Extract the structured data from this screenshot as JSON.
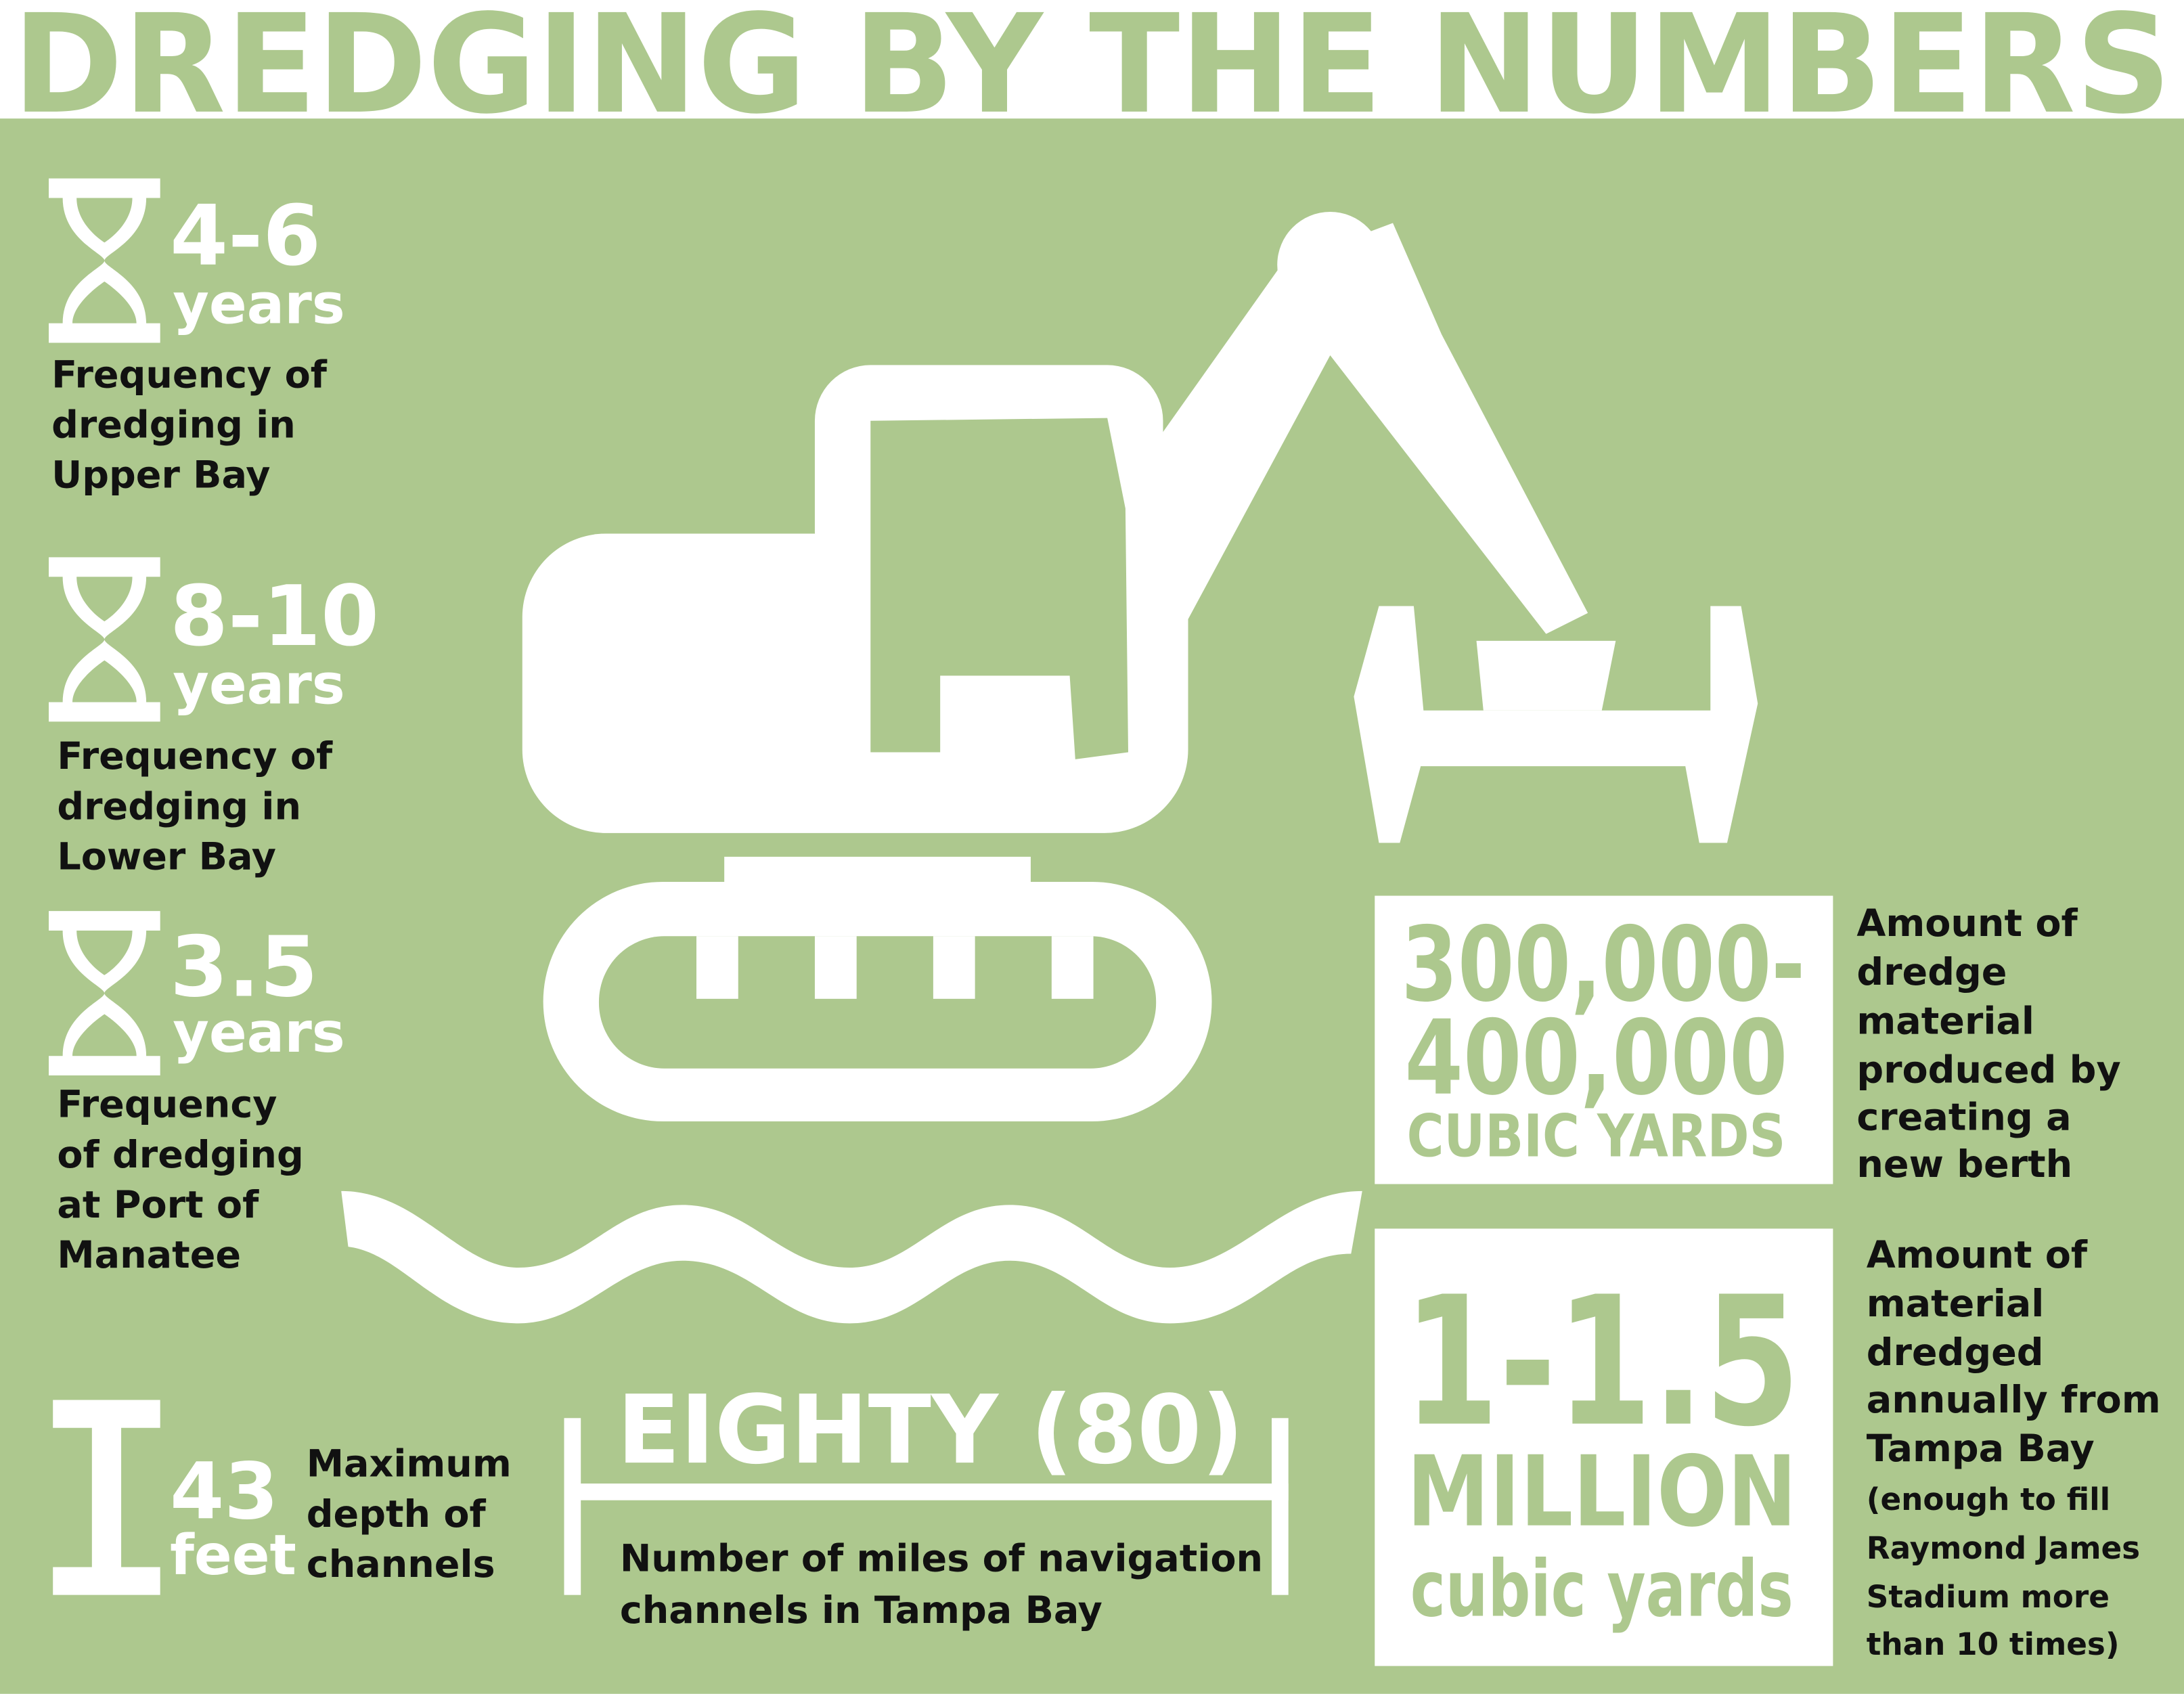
{
  "title": "DREDGING BY THE NUMBERS",
  "stats": [
    {
      "value": "4-6",
      "unit": "years",
      "description": [
        "Frequency of",
        "dredging in",
        "Upper Bay"
      ]
    },
    {
      "value": "8-10",
      "unit": "years",
      "description": [
        "Frequency of",
        "dredging in",
        "Lower Bay"
      ]
    },
    {
      "value": "3.5",
      "unit": "years",
      "description": [
        "Frequency",
        "of dredging",
        "at Port of",
        "Manatee"
      ]
    },
    {
      "value": "43",
      "unit": "feet",
      "description": [
        "Maximum",
        "depth of",
        "channels"
      ]
    },
    {
      "value": "EIGHTY (80)",
      "description": [
        "Number of miles of navigation",
        "channels in Tampa Bay"
      ]
    },
    {
      "value": [
        "300,000-",
        "400,000"
      ],
      "unit": "CUBIC YARDS",
      "description": [
        "Amount of",
        "dredge",
        "material",
        "produced by",
        "creating a",
        "new berth"
      ]
    },
    {
      "value": [
        "1-1.5",
        "MILLION"
      ],
      "unit": "cubic yards",
      "description": [
        "Amount of",
        "material",
        "dredged",
        "annually from",
        "Tampa Bay"
      ],
      "note": [
        "(enough to fill",
        "Raymond James",
        "Stadium more",
        "than 10 times)"
      ]
    }
  ]
}
